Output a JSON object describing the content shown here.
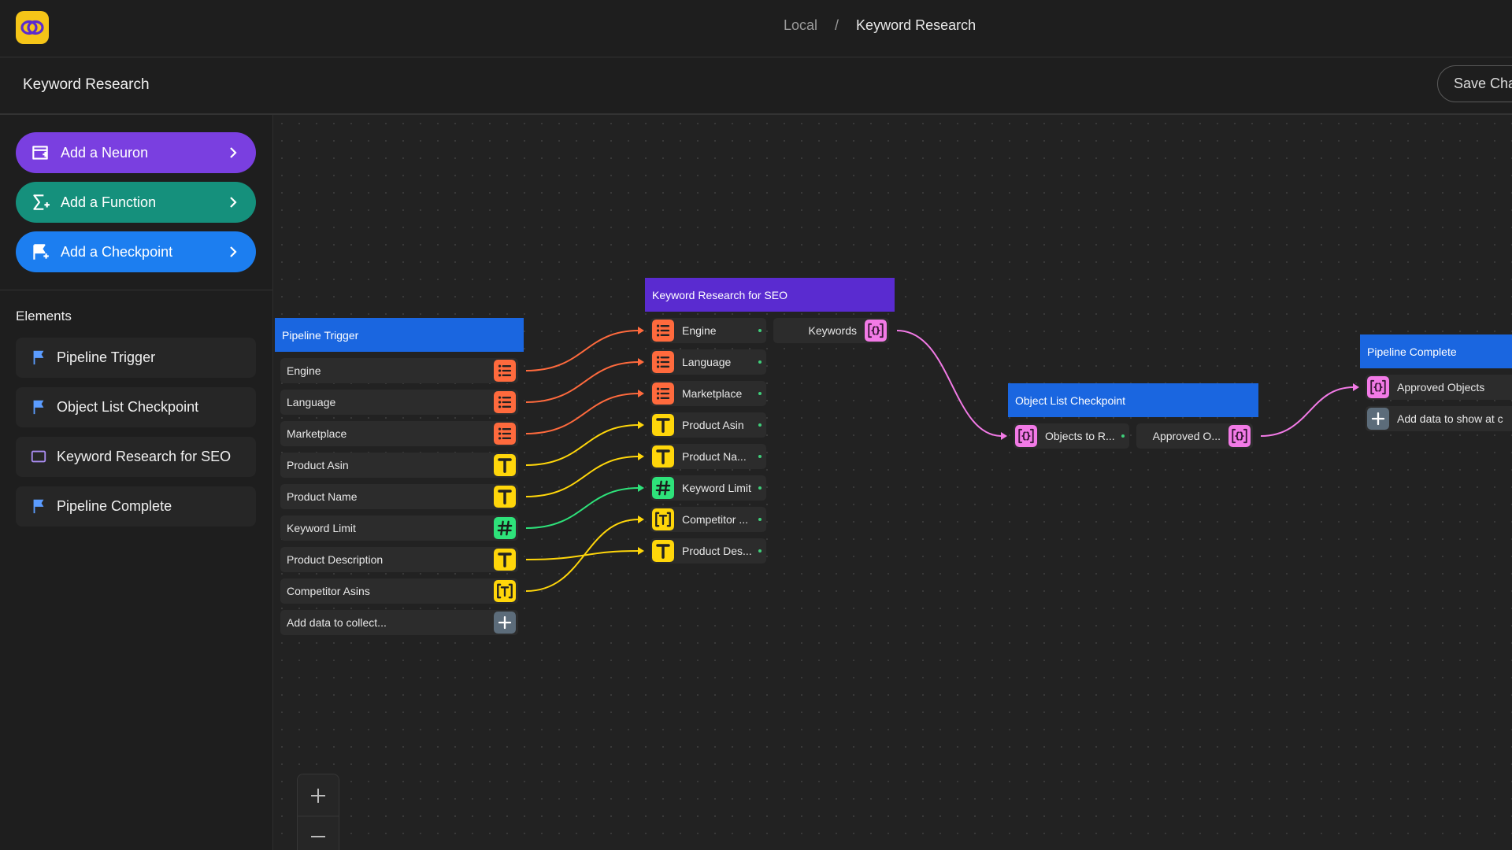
{
  "header": {
    "breadcrumb": [
      "Local",
      "/",
      "Keyword Research"
    ]
  },
  "toolbar": {
    "title": "Keyword Research",
    "save_button": "Save Cha"
  },
  "sidebar": {
    "actions": [
      {
        "label": "Add a Neuron",
        "icon": "neuron",
        "color": "#7a3fe0"
      },
      {
        "label": "Add a Function",
        "icon": "function",
        "color": "#15907c"
      },
      {
        "label": "Add a Checkpoint",
        "icon": "checkpoint",
        "color": "#1c7ef0"
      }
    ],
    "elements_heading": "Elements",
    "elements": [
      {
        "label": "Pipeline Trigger",
        "icon": "flag"
      },
      {
        "label": "Object List Checkpoint",
        "icon": "flag"
      },
      {
        "label": "Keyword Research for SEO",
        "icon": "neuron"
      },
      {
        "label": "Pipeline Complete",
        "icon": "flag"
      }
    ]
  },
  "nodes": [
    {
      "title": "Pipeline Trigger",
      "color": "#1a66e0",
      "outputs": [
        {
          "label": "Engine",
          "kind": "list"
        },
        {
          "label": "Language",
          "kind": "list"
        },
        {
          "label": "Marketplace",
          "kind": "list"
        },
        {
          "label": "Product Asin",
          "kind": "text"
        },
        {
          "label": "Product Name",
          "kind": "text"
        },
        {
          "label": "Keyword Limit",
          "kind": "number"
        },
        {
          "label": "Product Description",
          "kind": "text"
        },
        {
          "label": "Competitor Asins",
          "kind": "textlist"
        },
        {
          "label": "Add data to collect...",
          "kind": "add"
        }
      ]
    },
    {
      "title": "Keyword Research for SEO",
      "color": "#5a2bd0",
      "inputs": [
        {
          "label": "Engine",
          "kind": "list"
        },
        {
          "label": "Language",
          "kind": "list"
        },
        {
          "label": "Marketplace",
          "kind": "list"
        },
        {
          "label": "Product Asin",
          "kind": "text"
        },
        {
          "label": "Product Na...",
          "kind": "text"
        },
        {
          "label": "Keyword Limit",
          "kind": "number"
        },
        {
          "label": "Competitor ...",
          "kind": "textlist"
        },
        {
          "label": "Product Des...",
          "kind": "text"
        }
      ],
      "outputs": [
        {
          "label": "Keywords",
          "kind": "object"
        }
      ]
    },
    {
      "title": "Object List Checkpoint",
      "color": "#1a66e0",
      "inputs": [
        {
          "label": "Objects to R...",
          "kind": "object"
        }
      ],
      "outputs": [
        {
          "label": "Approved O...",
          "kind": "object"
        }
      ]
    },
    {
      "title": "Pipeline Complete",
      "color": "#1a66e0",
      "inputs": [
        {
          "label": "Approved Objects",
          "kind": "object"
        },
        {
          "label": "Add data to show at c",
          "kind": "add"
        }
      ]
    }
  ]
}
